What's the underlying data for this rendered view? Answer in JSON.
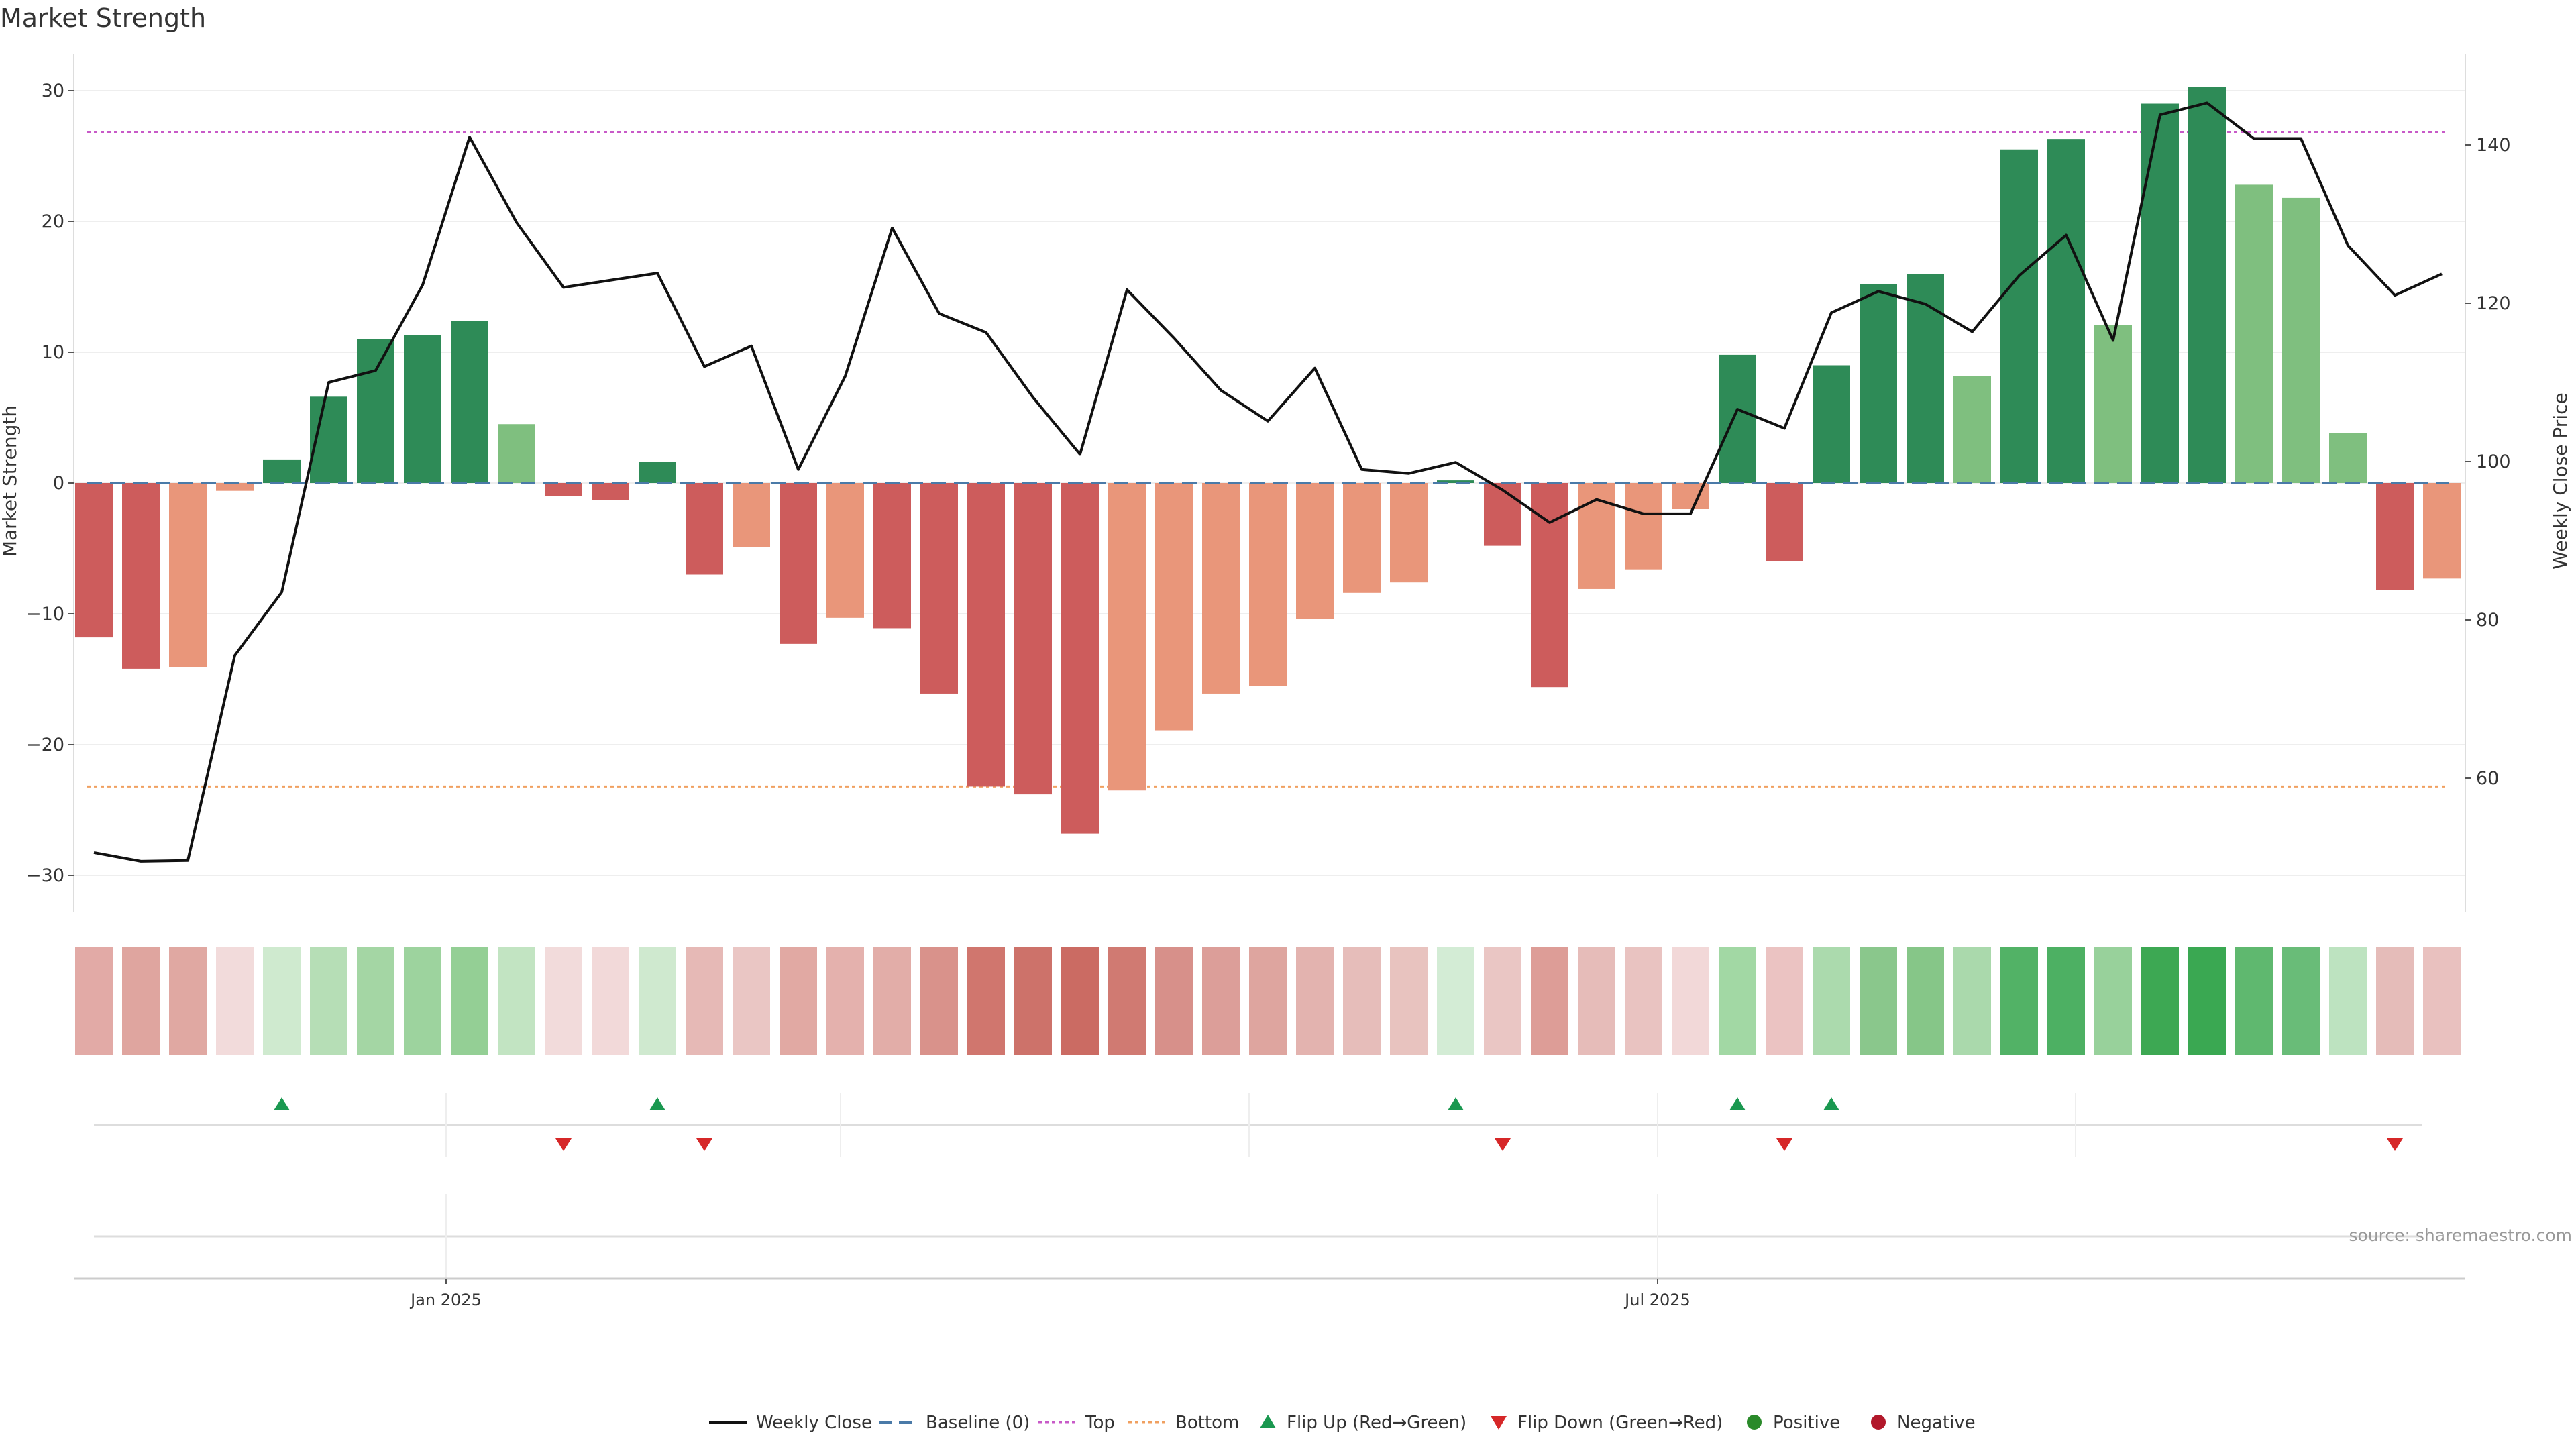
{
  "chart_data": {
    "type": "bar",
    "title": "Market Strength",
    "ylabel": "Market Strength",
    "y2label": "Weekly Close Price",
    "ylim": [
      -33,
      33
    ],
    "y2lim": [
      45,
      152
    ],
    "yticks": [
      -30,
      -20,
      -10,
      0,
      10,
      20,
      30
    ],
    "y2ticks": [
      60,
      80,
      100,
      120,
      140
    ],
    "ytick_labels": [
      "−30",
      "−20",
      "−10",
      "0",
      "10",
      "20",
      "30"
    ],
    "y2tick_labels": [
      "60",
      "80",
      "100",
      "120",
      "140"
    ],
    "top_threshold": 26.8,
    "bottom_threshold": -23.2,
    "x_month_ticks": [
      {
        "week_index": 7.5,
        "label": "Jan 2025"
      },
      {
        "week_index": 33.3,
        "label": "Jul 2025"
      }
    ],
    "secondary_tick_week_indices": [
      7.5,
      15.9,
      24.6,
      33.3,
      42.2
    ],
    "series": [
      {
        "name": "Market Strength",
        "values": [
          -11.8,
          -14.2,
          -14.1,
          -0.6,
          1.8,
          6.6,
          11.0,
          11.3,
          12.4,
          4.5,
          -1.0,
          -1.3,
          1.6,
          -7.0,
          -4.9,
          -12.3,
          -10.3,
          -11.1,
          -16.1,
          -23.2,
          -23.8,
          -26.8,
          -23.5,
          -18.9,
          -16.1,
          -15.5,
          -10.4,
          -8.4,
          -7.6,
          0.2,
          -4.8,
          -15.6,
          -8.1,
          -6.6,
          -2.0,
          9.8,
          -6.0,
          9.0,
          15.2,
          16.0,
          8.2,
          25.5,
          26.3,
          12.1,
          29.0,
          30.3,
          22.8,
          21.8,
          3.8,
          -8.2,
          -7.3
        ],
        "colors": [
          "#cd5c5c",
          "#cd5c5c",
          "#e9967a",
          "#e9967a",
          "#2e8b57",
          "#2e8b57",
          "#2e8b57",
          "#2e8b57",
          "#2e8b57",
          "#7fbf7f",
          "#cd5c5c",
          "#cd5c5c",
          "#2e8b57",
          "#cd5c5c",
          "#e9967a",
          "#cd5c5c",
          "#e9967a",
          "#cd5c5c",
          "#cd5c5c",
          "#cd5c5c",
          "#cd5c5c",
          "#cd5c5c",
          "#e9967a",
          "#e9967a",
          "#e9967a",
          "#e9967a",
          "#e9967a",
          "#e9967a",
          "#e9967a",
          "#2e8b57",
          "#cd5c5c",
          "#cd5c5c",
          "#e9967a",
          "#e9967a",
          "#e9967a",
          "#2e8b57",
          "#cd5c5c",
          "#2e8b57",
          "#2e8b57",
          "#2e8b57",
          "#7fbf7f",
          "#2e8b57",
          "#2e8b57",
          "#7fbf7f",
          "#2e8b57",
          "#2e8b57",
          "#7fbf7f",
          "#7fbf7f",
          "#7fbf7f",
          "#cd5c5c",
          "#e9967a"
        ]
      },
      {
        "name": "Weekly Close",
        "axis": "right",
        "values": [
          50.6,
          49.5,
          49.6,
          75.5,
          83.5,
          110.0,
          111.5,
          122.3,
          141.0,
          130.2,
          122.0,
          122.9,
          123.8,
          112.0,
          114.6,
          99.0,
          110.8,
          129.5,
          118.7,
          116.3,
          108.1,
          100.9,
          121.7,
          115.6,
          109.0,
          105.1,
          111.8,
          99.0,
          98.5,
          99.9,
          96.4,
          92.3,
          95.2,
          93.4,
          93.4,
          106.6,
          104.2,
          118.8,
          121.5,
          119.9,
          116.4,
          123.5,
          128.6,
          115.3,
          143.8,
          145.3,
          140.8,
          140.8,
          127.3,
          121.0,
          123.7
        ]
      }
    ],
    "heat_strip": [
      "#e2aaa6",
      "#dfa59f",
      "#e0a8a2",
      "#f2dbdb",
      "#cfeacf",
      "#b6deb6",
      "#a4d6a4",
      "#9dd39e",
      "#94cf95",
      "#c2e4c2",
      "#f2dbdb",
      "#f2d9d9",
      "#cfe9cf",
      "#e6b9b6",
      "#eac6c4",
      "#e1a9a3",
      "#e4b1ad",
      "#e2ada8",
      "#d9928b",
      "#d0766e",
      "#cd726a",
      "#cb6b63",
      "#d07a72",
      "#d7908a",
      "#dc9e99",
      "#dea59f",
      "#e3b3af",
      "#e6bdba",
      "#e8c3bf",
      "#d3ecd5",
      "#eac6c4",
      "#dd9d97",
      "#e6bcb9",
      "#e9c3c1",
      "#f2d8d8",
      "#a2d8a4",
      "#ebc3c2",
      "#abdaad",
      "#8ac78c",
      "#86c688",
      "#aad9ac",
      "#52b266",
      "#4db063",
      "#98d19b",
      "#3da853",
      "#3aa852",
      "#5fb86f",
      "#69bc78",
      "#bde3c0",
      "#e5bcb9",
      "#e9c1bf"
    ],
    "flip_up_week_indices": [
      4,
      12,
      29,
      35,
      37
    ],
    "flip_down_week_indices": [
      10,
      13,
      30,
      36,
      49
    ],
    "legend": [
      "Weekly Close",
      "Baseline (0)",
      "Top",
      "Bottom",
      "Flip Up (Red→Green)",
      "Flip Down (Green→Red)",
      "Positive",
      "Negative"
    ],
    "legend_position": "bottom-center",
    "source": "source: sharemaestro.com"
  },
  "colors": {
    "strong_green": "#2e8b57",
    "light_green": "#7fbf7f",
    "strong_red": "#cd5c5c",
    "light_red": "#e9967a",
    "top_line": "#c85ac8",
    "bottom_line": "#f0a060",
    "baseline": "#4a7aa8",
    "flip_up": "#1a9850",
    "flip_down": "#d62728",
    "positive_dot": "#2a8a2a",
    "negative_dot": "#b2182b"
  }
}
